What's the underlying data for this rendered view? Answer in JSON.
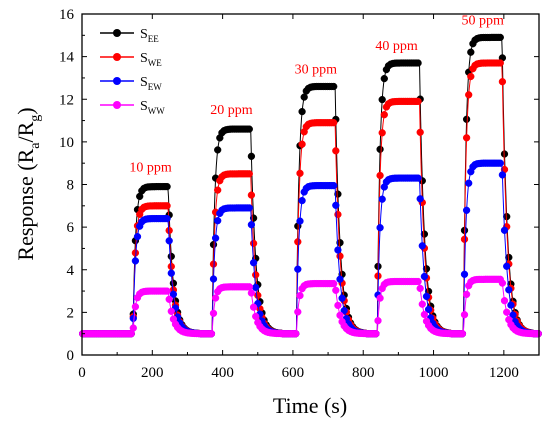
{
  "chart_data": {
    "type": "line",
    "xlabel": "Time (s)",
    "ylabel": {
      "main": "Response (R",
      "sub1": "a",
      "mid": "/R",
      "sub2": "g",
      "end": ")"
    },
    "xlim": [
      0,
      1300
    ],
    "ylim": [
      0,
      16
    ],
    "x_ticks": [
      "0",
      "200",
      "400",
      "600",
      "800",
      "1000",
      "1200"
    ],
    "y_ticks": [
      "0",
      "2",
      "4",
      "6",
      "8",
      "10",
      "12",
      "14",
      "16"
    ],
    "legend_position": "top-left",
    "pulse_windows": [
      [
        145,
        245
      ],
      [
        370,
        480
      ],
      [
        610,
        720
      ],
      [
        840,
        960
      ],
      [
        1085,
        1195
      ]
    ],
    "series": [
      {
        "name": "S",
        "sub": "EE",
        "color": "#000000",
        "baseline": 1.0,
        "plateaus": [
          7.9,
          10.6,
          12.6,
          13.7,
          14.9
        ]
      },
      {
        "name": "S",
        "sub": "WE",
        "color": "#ff0000",
        "baseline": 1.0,
        "plateaus": [
          7.0,
          8.5,
          10.9,
          11.9,
          13.7
        ]
      },
      {
        "name": "S",
        "sub": "EW",
        "color": "#0000ff",
        "baseline": 1.0,
        "plateaus": [
          6.4,
          6.9,
          7.95,
          8.3,
          9.0
        ]
      },
      {
        "name": "S",
        "sub": "WW",
        "color": "#ff00ff",
        "baseline": 1.0,
        "plateaus": [
          3.0,
          3.2,
          3.35,
          3.45,
          3.55
        ]
      }
    ],
    "annotations": [
      {
        "text": "10 ppm",
        "x": 195,
        "y": 8.6
      },
      {
        "text": "20 ppm",
        "x": 425,
        "y": 11.3
      },
      {
        "text": "30 ppm",
        "x": 665,
        "y": 13.2
      },
      {
        "text": "40 ppm",
        "x": 895,
        "y": 14.3
      },
      {
        "text": "50 ppm",
        "x": 1140,
        "y": 15.5
      }
    ],
    "annotation_color": "#ff0000"
  }
}
